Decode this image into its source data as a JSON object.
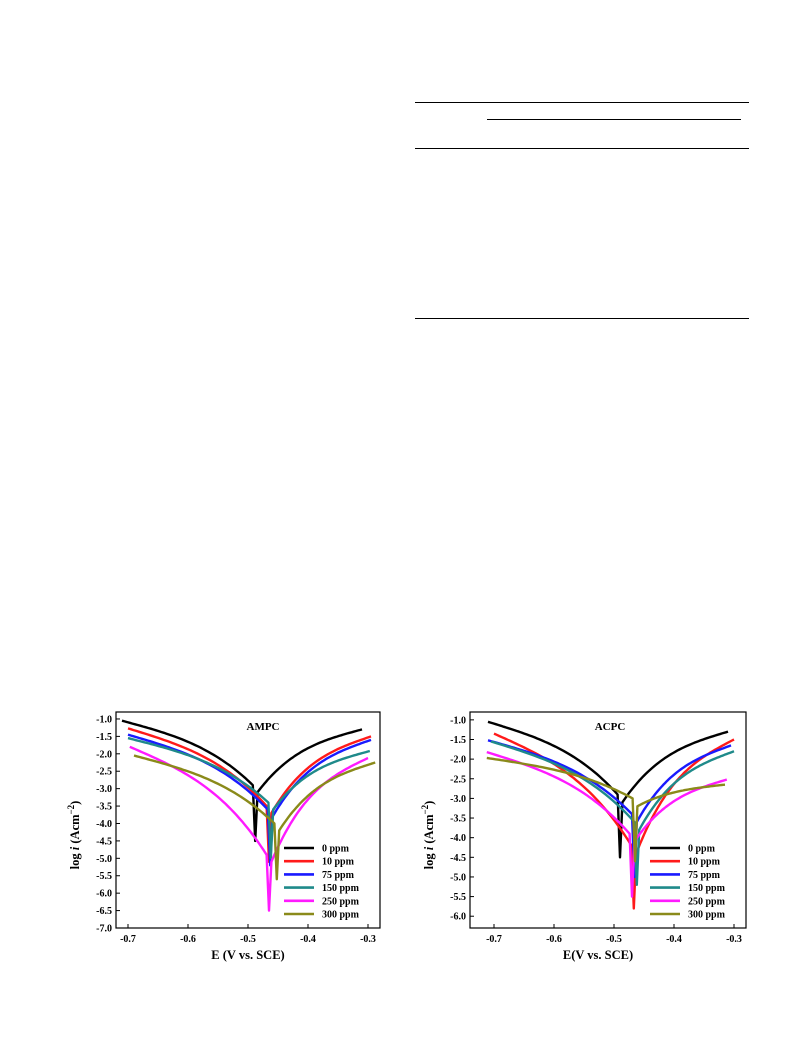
{
  "chart_data": [
    {
      "type": "line",
      "title": "AMPC",
      "xlabel": "E (V vs. SCE)",
      "ylabel": "log i (Acm⁻²)",
      "ylabel_main": "log ",
      "ylabel_italic": "i",
      "ylabel_unit": " (Acm",
      "ylabel_exp": "−2",
      "ylabel_close": ")",
      "xlim": [
        -0.72,
        -0.28
      ],
      "ylim": [
        -7.0,
        -0.8
      ],
      "xticks": [
        -0.7,
        -0.6,
        -0.5,
        -0.4,
        -0.3
      ],
      "xtick_labels": [
        "-0.7",
        "-0.6",
        "-0.5",
        "-0.4",
        "-0.3"
      ],
      "yticks": [
        -1.0,
        -1.5,
        -2.0,
        -2.5,
        -3.0,
        -3.5,
        -4.0,
        -4.5,
        -5.0,
        -5.5,
        -6.0,
        -6.5,
        -7.0
      ],
      "ytick_labels": [
        "-1.0",
        "-1.5",
        "-2.0",
        "-2.5",
        "-3.0",
        "-3.5",
        "-4.0",
        "-4.5",
        "-5.0",
        "-5.5",
        "-6.0",
        "-6.5",
        "-7.0"
      ],
      "legend_position": "bottom-right",
      "series": [
        {
          "name": "0 ppm",
          "color": "#000000",
          "start": [
            -0.71,
            -1.05
          ],
          "ecorr": -0.488,
          "min": -4.5,
          "end": [
            -0.31,
            -1.3
          ]
        },
        {
          "name": "10 ppm",
          "color": "#ff1a1a",
          "start": [
            -0.7,
            -1.27
          ],
          "ecorr": -0.465,
          "min": -5.1,
          "end": [
            -0.295,
            -1.5
          ]
        },
        {
          "name": "75 ppm",
          "color": "#1a1aff",
          "start": [
            -0.7,
            -1.45
          ],
          "ecorr": -0.463,
          "min": -5.2,
          "end": [
            -0.295,
            -1.6
          ]
        },
        {
          "name": "150 ppm",
          "color": "#1f8a8a",
          "start": [
            -0.7,
            -1.55
          ],
          "ecorr": -0.462,
          "min": -5.0,
          "end": [
            -0.297,
            -1.92
          ]
        },
        {
          "name": "250 ppm",
          "color": "#ff1aff",
          "start": [
            -0.697,
            -1.8
          ],
          "ecorr": -0.465,
          "min": -6.5,
          "end": [
            -0.3,
            -2.12
          ]
        },
        {
          "name": "300 ppm",
          "color": "#8a8a1a",
          "start": [
            -0.69,
            -2.05
          ],
          "ecorr": -0.452,
          "min": -5.6,
          "end": [
            -0.288,
            -2.25
          ]
        }
      ]
    },
    {
      "type": "line",
      "title": "ACPC",
      "xlabel": "E(V vs. SCE)",
      "ylabel": "log i (Acm⁻²)",
      "ylabel_main": "log ",
      "ylabel_italic": "i",
      "ylabel_unit": " (Acm",
      "ylabel_exp": "−2",
      "ylabel_close": ")",
      "xlim": [
        -0.74,
        -0.28
      ],
      "ylim": [
        -6.3,
        -0.8
      ],
      "xticks": [
        -0.7,
        -0.6,
        -0.5,
        -0.4,
        -0.3
      ],
      "xtick_labels": [
        "-0.7",
        "-0.6",
        "-0.5",
        "-0.4",
        "-0.3"
      ],
      "yticks": [
        -1.0,
        -1.5,
        -2.0,
        -2.5,
        -3.0,
        -3.5,
        -4.0,
        -4.5,
        -5.0,
        -5.5,
        -6.0
      ],
      "ytick_labels": [
        "-1.0",
        "-1.5",
        "-2.0",
        "-2.5",
        "-3.0",
        "-3.5",
        "-4.0",
        "-4.5",
        "-5.0",
        "-5.5",
        "-6.0"
      ],
      "legend_position": "bottom-right",
      "series": [
        {
          "name": "0 ppm",
          "color": "#000000",
          "start": [
            -0.71,
            -1.05
          ],
          "ecorr": -0.49,
          "min": -4.5,
          "end": [
            -0.31,
            -1.3
          ]
        },
        {
          "name": "10 ppm",
          "color": "#ff1a1a",
          "start": [
            -0.7,
            -1.35
          ],
          "ecorr": -0.467,
          "min": -5.8,
          "end": [
            -0.3,
            -1.5
          ]
        },
        {
          "name": "75 ppm",
          "color": "#1a1aff",
          "start": [
            -0.71,
            -1.52
          ],
          "ecorr": -0.466,
          "min": -5.0,
          "end": [
            -0.305,
            -1.65
          ]
        },
        {
          "name": "150 ppm",
          "color": "#1f8a8a",
          "start": [
            -0.705,
            -1.55
          ],
          "ecorr": -0.462,
          "min": -5.2,
          "end": [
            -0.3,
            -1.8
          ]
        },
        {
          "name": "250 ppm",
          "color": "#ff1aff",
          "start": [
            -0.712,
            -1.82
          ],
          "ecorr": -0.47,
          "min": -5.5,
          "end": [
            -0.312,
            -2.52
          ]
        },
        {
          "name": "300 ppm",
          "color": "#8a8a1a",
          "start": [
            -0.712,
            -1.97
          ],
          "ecorr": -0.465,
          "min": -4.6,
          "end": [
            -0.315,
            -2.65
          ]
        }
      ]
    }
  ]
}
